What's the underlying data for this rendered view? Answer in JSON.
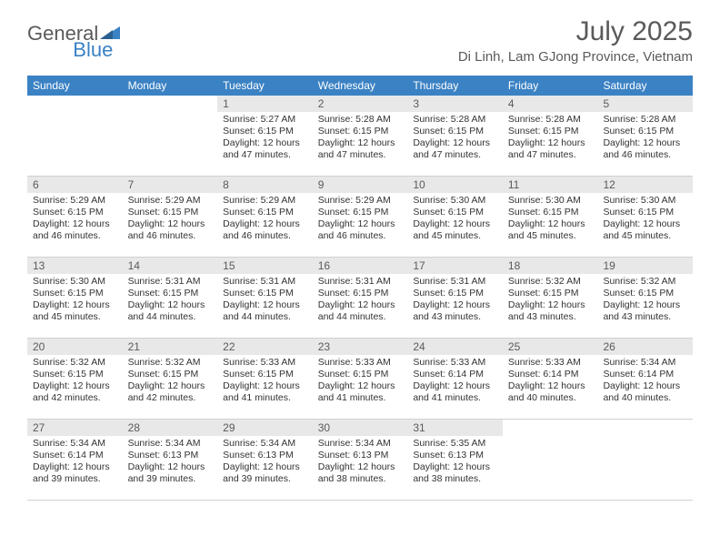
{
  "logo": {
    "text_general": "General",
    "text_blue": "Blue"
  },
  "title": "July 2025",
  "location": "Di Linh, Lam GJong Province, Vietnam",
  "colors": {
    "header_bg": "#3b82c4",
    "header_text": "#ffffff",
    "daynum_bg": "#e8e8e8",
    "text_gray": "#5a5a5a",
    "body_text": "#333333"
  },
  "day_headers": [
    "Sunday",
    "Monday",
    "Tuesday",
    "Wednesday",
    "Thursday",
    "Friday",
    "Saturday"
  ],
  "weeks": [
    [
      null,
      null,
      {
        "n": "1",
        "sr": "5:27 AM",
        "ss": "6:15 PM",
        "dl": "12 hours and 47 minutes."
      },
      {
        "n": "2",
        "sr": "5:28 AM",
        "ss": "6:15 PM",
        "dl": "12 hours and 47 minutes."
      },
      {
        "n": "3",
        "sr": "5:28 AM",
        "ss": "6:15 PM",
        "dl": "12 hours and 47 minutes."
      },
      {
        "n": "4",
        "sr": "5:28 AM",
        "ss": "6:15 PM",
        "dl": "12 hours and 47 minutes."
      },
      {
        "n": "5",
        "sr": "5:28 AM",
        "ss": "6:15 PM",
        "dl": "12 hours and 46 minutes."
      }
    ],
    [
      {
        "n": "6",
        "sr": "5:29 AM",
        "ss": "6:15 PM",
        "dl": "12 hours and 46 minutes."
      },
      {
        "n": "7",
        "sr": "5:29 AM",
        "ss": "6:15 PM",
        "dl": "12 hours and 46 minutes."
      },
      {
        "n": "8",
        "sr": "5:29 AM",
        "ss": "6:15 PM",
        "dl": "12 hours and 46 minutes."
      },
      {
        "n": "9",
        "sr": "5:29 AM",
        "ss": "6:15 PM",
        "dl": "12 hours and 46 minutes."
      },
      {
        "n": "10",
        "sr": "5:30 AM",
        "ss": "6:15 PM",
        "dl": "12 hours and 45 minutes."
      },
      {
        "n": "11",
        "sr": "5:30 AM",
        "ss": "6:15 PM",
        "dl": "12 hours and 45 minutes."
      },
      {
        "n": "12",
        "sr": "5:30 AM",
        "ss": "6:15 PM",
        "dl": "12 hours and 45 minutes."
      }
    ],
    [
      {
        "n": "13",
        "sr": "5:30 AM",
        "ss": "6:15 PM",
        "dl": "12 hours and 45 minutes."
      },
      {
        "n": "14",
        "sr": "5:31 AM",
        "ss": "6:15 PM",
        "dl": "12 hours and 44 minutes."
      },
      {
        "n": "15",
        "sr": "5:31 AM",
        "ss": "6:15 PM",
        "dl": "12 hours and 44 minutes."
      },
      {
        "n": "16",
        "sr": "5:31 AM",
        "ss": "6:15 PM",
        "dl": "12 hours and 44 minutes."
      },
      {
        "n": "17",
        "sr": "5:31 AM",
        "ss": "6:15 PM",
        "dl": "12 hours and 43 minutes."
      },
      {
        "n": "18",
        "sr": "5:32 AM",
        "ss": "6:15 PM",
        "dl": "12 hours and 43 minutes."
      },
      {
        "n": "19",
        "sr": "5:32 AM",
        "ss": "6:15 PM",
        "dl": "12 hours and 43 minutes."
      }
    ],
    [
      {
        "n": "20",
        "sr": "5:32 AM",
        "ss": "6:15 PM",
        "dl": "12 hours and 42 minutes."
      },
      {
        "n": "21",
        "sr": "5:32 AM",
        "ss": "6:15 PM",
        "dl": "12 hours and 42 minutes."
      },
      {
        "n": "22",
        "sr": "5:33 AM",
        "ss": "6:15 PM",
        "dl": "12 hours and 41 minutes."
      },
      {
        "n": "23",
        "sr": "5:33 AM",
        "ss": "6:15 PM",
        "dl": "12 hours and 41 minutes."
      },
      {
        "n": "24",
        "sr": "5:33 AM",
        "ss": "6:14 PM",
        "dl": "12 hours and 41 minutes."
      },
      {
        "n": "25",
        "sr": "5:33 AM",
        "ss": "6:14 PM",
        "dl": "12 hours and 40 minutes."
      },
      {
        "n": "26",
        "sr": "5:34 AM",
        "ss": "6:14 PM",
        "dl": "12 hours and 40 minutes."
      }
    ],
    [
      {
        "n": "27",
        "sr": "5:34 AM",
        "ss": "6:14 PM",
        "dl": "12 hours and 39 minutes."
      },
      {
        "n": "28",
        "sr": "5:34 AM",
        "ss": "6:13 PM",
        "dl": "12 hours and 39 minutes."
      },
      {
        "n": "29",
        "sr": "5:34 AM",
        "ss": "6:13 PM",
        "dl": "12 hours and 39 minutes."
      },
      {
        "n": "30",
        "sr": "5:34 AM",
        "ss": "6:13 PM",
        "dl": "12 hours and 38 minutes."
      },
      {
        "n": "31",
        "sr": "5:35 AM",
        "ss": "6:13 PM",
        "dl": "12 hours and 38 minutes."
      },
      null,
      null
    ]
  ],
  "labels": {
    "sunrise": "Sunrise:",
    "sunset": "Sunset:",
    "daylight": "Daylight:"
  }
}
